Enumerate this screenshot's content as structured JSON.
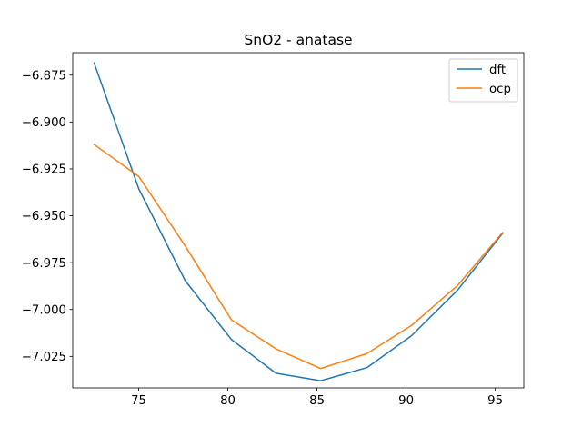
{
  "chart_data": {
    "type": "line",
    "title": "SnO2 - anatase",
    "xlabel": "",
    "ylabel": "",
    "xlim": [
      71.3,
      96.6
    ],
    "ylim": [
      -7.0418,
      -6.863
    ],
    "x_ticks": [
      75,
      80,
      85,
      90,
      95
    ],
    "y_ticks": [
      -6.875,
      -6.9,
      -6.925,
      -6.95,
      -6.975,
      -7.0,
      -7.025
    ],
    "x_tick_labels": [
      "75",
      "80",
      "85",
      "90",
      "95"
    ],
    "y_tick_labels": [
      "−6.875",
      "−6.900",
      "−6.925",
      "−6.950",
      "−6.975",
      "−7.000",
      "−7.025"
    ],
    "x": [
      72.5,
      75.0,
      77.6,
      80.2,
      82.7,
      85.2,
      87.8,
      90.3,
      92.9,
      95.4
    ],
    "series": [
      {
        "name": "dft",
        "color": "#1f77b4",
        "values": [
          -6.8685,
          -6.9355,
          -6.9845,
          -7.016,
          -7.034,
          -7.038,
          -7.031,
          -7.014,
          -6.9895,
          -6.9595
        ]
      },
      {
        "name": "ocp",
        "color": "#ff7f0e",
        "values": [
          -6.912,
          -6.929,
          -6.966,
          -7.0055,
          -7.021,
          -7.0315,
          -7.0235,
          -7.0085,
          -6.987,
          -6.959
        ]
      }
    ],
    "grid": false,
    "legend_position": "top-right"
  }
}
